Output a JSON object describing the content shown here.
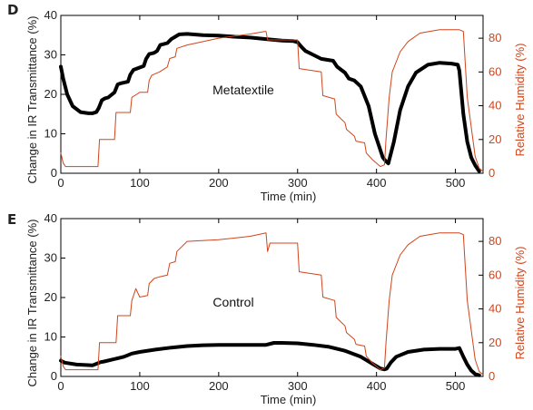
{
  "chart_data": [
    {
      "panel": "D",
      "type": "line",
      "annotation": "Metatextile",
      "xlabel": "Time (min)",
      "ylabel": "Change in IR Transmittance (%)",
      "ylabel_right": "Relative Humidity (%)",
      "xlim": [
        0,
        535
      ],
      "ylim": [
        0,
        40
      ],
      "ylim_right": [
        0,
        93.5
      ],
      "xticks": [
        "0",
        "100",
        "200",
        "300",
        "400",
        "500"
      ],
      "yticks": [
        "0",
        "10",
        "20",
        "30",
        "40"
      ],
      "yticks_right": [
        "0",
        "20",
        "40",
        "60",
        "80"
      ],
      "colors": {
        "transmittance": "#000000",
        "humidity": "#d0451b"
      },
      "series": [
        {
          "name": "",
          "axis": "left",
          "x": [
            0,
            3,
            8,
            15,
            25,
            35,
            40,
            45,
            48,
            52,
            56,
            60,
            68,
            72,
            76,
            85,
            88,
            92,
            96,
            105,
            108,
            112,
            118,
            122,
            126,
            135,
            140,
            145,
            150,
            160,
            180,
            200,
            220,
            240,
            260,
            280,
            295,
            300,
            305,
            310,
            320,
            330,
            345,
            350,
            360,
            365,
            372,
            380,
            390,
            398,
            403,
            408,
            412,
            415,
            422,
            430,
            440,
            450,
            465,
            480,
            495,
            503,
            505,
            510,
            515,
            520,
            525,
            530
          ],
          "y": [
            27,
            24,
            20,
            17,
            15.5,
            15.2,
            15.2,
            15.5,
            16.5,
            18.5,
            19,
            19.2,
            20.5,
            22.5,
            22.8,
            23.2,
            25,
            26.2,
            26.5,
            27.2,
            29,
            30.2,
            30.5,
            31,
            32.5,
            33,
            34,
            34.6,
            35.2,
            35.3,
            35.0,
            34.9,
            34.6,
            34.4,
            34.0,
            33.6,
            33.5,
            33.2,
            32,
            31,
            30,
            29,
            28.5,
            27,
            25.5,
            24,
            23.5,
            22,
            17,
            10,
            7,
            4,
            3,
            2.5,
            8,
            16,
            22,
            25.5,
            27.5,
            28.0,
            27.8,
            27.5,
            26,
            15,
            8,
            4,
            2,
            0.5
          ]
        },
        {
          "name": "",
          "axis": "right",
          "x": [
            0,
            3,
            6,
            20,
            40,
            47,
            49,
            60,
            68,
            70,
            85,
            88,
            90,
            97,
            100,
            110,
            112,
            115,
            120,
            125,
            135,
            138,
            145,
            147,
            160,
            200,
            240,
            258,
            260,
            262,
            280,
            300,
            302,
            330,
            332,
            347,
            349,
            360,
            362,
            372,
            374,
            385,
            387,
            395,
            405,
            410,
            412,
            416,
            420,
            430,
            440,
            455,
            480,
            500,
            505,
            510,
            515,
            525,
            530,
            535
          ],
          "y": [
            12,
            6,
            4,
            4,
            4,
            4,
            20,
            20,
            20,
            36,
            36,
            36,
            45,
            47,
            48,
            48,
            55,
            58,
            59,
            60,
            63,
            68,
            69,
            74,
            76,
            80,
            82.5,
            84,
            84,
            79,
            79,
            79,
            62,
            60,
            46,
            44,
            35,
            30,
            26,
            22,
            19,
            18,
            12,
            8,
            4,
            5,
            20,
            45,
            60,
            72,
            78,
            83,
            85,
            85,
            85,
            84,
            45,
            10,
            3,
            1
          ]
        }
      ]
    },
    {
      "panel": "E",
      "type": "line",
      "annotation": "Control",
      "xlabel": "Time (min)",
      "ylabel": "Change in IR Transmittance (%)",
      "ylabel_right": "Relative Humidity (%)",
      "xlim": [
        0,
        535
      ],
      "ylim": [
        0,
        40
      ],
      "ylim_right": [
        0,
        93.5
      ],
      "xticks": [
        "0",
        "100",
        "200",
        "300",
        "400",
        "500"
      ],
      "yticks": [
        "0",
        "10",
        "20",
        "30",
        "40"
      ],
      "yticks_right": [
        "0",
        "20",
        "40",
        "60",
        "80"
      ],
      "colors": {
        "transmittance": "#000000",
        "humidity": "#d0451b"
      },
      "series": [
        {
          "name": "",
          "axis": "left",
          "x": [
            0,
            5,
            20,
            40,
            45,
            50,
            55,
            70,
            80,
            90,
            100,
            120,
            140,
            160,
            180,
            200,
            220,
            240,
            260,
            270,
            280,
            300,
            320,
            340,
            360,
            380,
            395,
            405,
            410,
            413,
            418,
            425,
            440,
            460,
            480,
            500,
            505,
            510,
            515,
            520,
            525,
            530
          ],
          "y": [
            4,
            3.5,
            3.0,
            2.8,
            3.2,
            3.6,
            3.8,
            4.5,
            5.0,
            5.8,
            6.2,
            6.8,
            7.3,
            7.7,
            7.9,
            8.0,
            8.0,
            8.0,
            8.0,
            8.5,
            8.5,
            8.4,
            8.0,
            7.5,
            6.5,
            5.0,
            3.2,
            2.0,
            1.8,
            2.0,
            3.5,
            5.0,
            6.2,
            6.8,
            7.0,
            7.0,
            7.2,
            5.0,
            3.0,
            1.5,
            0.6,
            0.3
          ]
        },
        {
          "name": "",
          "axis": "right",
          "x": [
            0,
            3,
            6,
            20,
            47,
            49,
            60,
            70,
            72,
            85,
            88,
            90,
            95,
            100,
            110,
            112,
            118,
            125,
            135,
            138,
            145,
            147,
            160,
            200,
            240,
            260,
            262,
            265,
            280,
            300,
            302,
            330,
            332,
            347,
            349,
            360,
            362,
            372,
            374,
            385,
            387,
            395,
            405,
            410,
            412,
            416,
            420,
            430,
            440,
            455,
            480,
            505,
            510,
            515,
            525,
            530,
            535
          ],
          "y": [
            12,
            6,
            4,
            4,
            4,
            20,
            20,
            20,
            36,
            36,
            36,
            45,
            52,
            47,
            48,
            55,
            58,
            59,
            60,
            67,
            68,
            74,
            80,
            81,
            83,
            85,
            74,
            79,
            79,
            79,
            62,
            60,
            47,
            45,
            35,
            30,
            26,
            22,
            19,
            18,
            12,
            8,
            4,
            5,
            20,
            45,
            60,
            72,
            78,
            83,
            85,
            85,
            84,
            45,
            10,
            3,
            1
          ]
        }
      ]
    }
  ],
  "panel_letters": [
    "D",
    "E"
  ]
}
